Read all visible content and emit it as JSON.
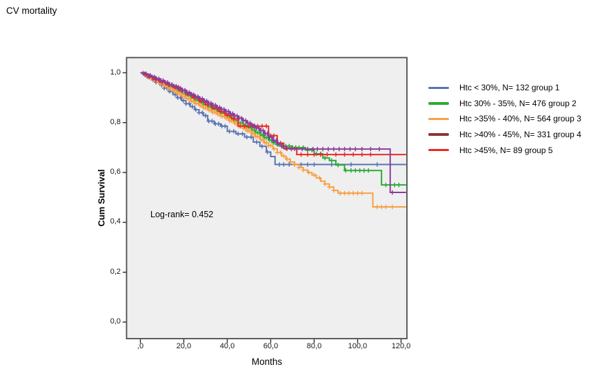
{
  "page": {
    "title": "CV mortality"
  },
  "plot": {
    "bg_color": "#efefef",
    "frame_color": "#4c4c4c",
    "tick_color": "#2b2b2b"
  },
  "x_axis": {
    "label": "Months",
    "ticks": [
      {
        "v": 0,
        "label": ",0"
      },
      {
        "v": 20,
        "label": "20,0"
      },
      {
        "v": 40,
        "label": "40,0"
      },
      {
        "v": 60,
        "label": "60,0"
      },
      {
        "v": 80,
        "label": "80,0"
      },
      {
        "v": 100,
        "label": "100,0"
      },
      {
        "v": 120,
        "label": "120,0"
      }
    ]
  },
  "y_axis": {
    "label": "Cum Survival",
    "ticks": [
      {
        "v": 0,
        "label": "0,0"
      },
      {
        "v": 0.2,
        "label": "0,2"
      },
      {
        "v": 0.4,
        "label": "0,4"
      },
      {
        "v": 0.6,
        "label": "0,6"
      },
      {
        "v": 0.8,
        "label": "0,8"
      },
      {
        "v": 1,
        "label": "1,0"
      }
    ]
  },
  "chart_data": {
    "type": "line",
    "subtype": "kaplan_meier_step",
    "title": "CV mortality",
    "xlabel": "Months",
    "ylabel": "Cum Survival",
    "xlim": [
      0,
      122.3
    ],
    "ylim": [
      0,
      1.0
    ],
    "grid": false,
    "legend_position": "right",
    "annotation": "Log-rank= 0.452",
    "series": [
      {
        "name": "Htc < 30%, N= 132 group 1",
        "group": 1,
        "n": 132,
        "z": 1,
        "color": "#5873b5",
        "legend_color": "#5873b5",
        "steps": [
          [
            0,
            1.0
          ],
          [
            1.5,
            0.992
          ],
          [
            3,
            0.984
          ],
          [
            5,
            0.972
          ],
          [
            7,
            0.962
          ],
          [
            9,
            0.95
          ],
          [
            11,
            0.938
          ],
          [
            13,
            0.925
          ],
          [
            15,
            0.912
          ],
          [
            17,
            0.9
          ],
          [
            19,
            0.888
          ],
          [
            21,
            0.876
          ],
          [
            23,
            0.864
          ],
          [
            25,
            0.852
          ],
          [
            27,
            0.84
          ],
          [
            29,
            0.828
          ],
          [
            31,
            0.806
          ],
          [
            34,
            0.795
          ],
          [
            37,
            0.786
          ],
          [
            40,
            0.765
          ],
          [
            44,
            0.755
          ],
          [
            48,
            0.742
          ],
          [
            52,
            0.722
          ],
          [
            55,
            0.705
          ],
          [
            58,
            0.682
          ],
          [
            60,
            0.664
          ],
          [
            62,
            0.632
          ],
          [
            122,
            0.632
          ]
        ],
        "censor_x": [
          2,
          3.2,
          4.5,
          5.8,
          7.2,
          8.5,
          9.8,
          11,
          12.2,
          13.5,
          14.8,
          16,
          17.2,
          18.5,
          19.8,
          21,
          22.5,
          24,
          25.5,
          27,
          28.5,
          30,
          31.5,
          33,
          34.5,
          36,
          37.5,
          39,
          41,
          43,
          45,
          47,
          49,
          51,
          53.5,
          56,
          58.5,
          64,
          66,
          68.5,
          71,
          74,
          77,
          80,
          88,
          97,
          109,
          115
        ]
      },
      {
        "name": "Htc 30% - 35%, N= 476 group 2",
        "group": 2,
        "n": 476,
        "z": 2,
        "color": "#2bab33",
        "legend_color": "#2bab33",
        "steps": [
          [
            0,
            1.0
          ],
          [
            1.5,
            0.995
          ],
          [
            3,
            0.988
          ],
          [
            5,
            0.979
          ],
          [
            7,
            0.97
          ],
          [
            9,
            0.961
          ],
          [
            11,
            0.952
          ],
          [
            13,
            0.943
          ],
          [
            15,
            0.934
          ],
          [
            17,
            0.925
          ],
          [
            19,
            0.916
          ],
          [
            21,
            0.908
          ],
          [
            23,
            0.899
          ],
          [
            25,
            0.89
          ],
          [
            27,
            0.882
          ],
          [
            29,
            0.872
          ],
          [
            31,
            0.863
          ],
          [
            33,
            0.855
          ],
          [
            35,
            0.847
          ],
          [
            37,
            0.838
          ],
          [
            39,
            0.828
          ],
          [
            41,
            0.818
          ],
          [
            43,
            0.808
          ],
          [
            45,
            0.798
          ],
          [
            47,
            0.789
          ],
          [
            49,
            0.78
          ],
          [
            51,
            0.77
          ],
          [
            53,
            0.76
          ],
          [
            55,
            0.75
          ],
          [
            57,
            0.74
          ],
          [
            59,
            0.73
          ],
          [
            61,
            0.72
          ],
          [
            63,
            0.712
          ],
          [
            65,
            0.706
          ],
          [
            70,
            0.7
          ],
          [
            76,
            0.69
          ],
          [
            80,
            0.675
          ],
          [
            84,
            0.658
          ],
          [
            87,
            0.648
          ],
          [
            90,
            0.63
          ],
          [
            94,
            0.608
          ],
          [
            111,
            0.55
          ],
          [
            122,
            0.55
          ]
        ],
        "censor_x": [
          1.2,
          2,
          2.8,
          3.6,
          4.4,
          5.2,
          6,
          6.8,
          7.6,
          8.4,
          9.2,
          10,
          10.8,
          11.6,
          12.4,
          13.2,
          14,
          14.8,
          15.6,
          16.4,
          17.2,
          18,
          18.8,
          19.6,
          20.4,
          21.2,
          22,
          22.8,
          23.6,
          24.4,
          25.2,
          26,
          26.8,
          27.6,
          28.4,
          29.2,
          30,
          30.8,
          31.6,
          32.4,
          33.2,
          34,
          34.8,
          35.6,
          36.4,
          37.2,
          38,
          38.8,
          39.6,
          40.4,
          41.2,
          42,
          42.8,
          43.6,
          44.4,
          45.2,
          46,
          46.8,
          47.6,
          48.4,
          49.2,
          50,
          50.8,
          51.6,
          52.4,
          53.2,
          54,
          54.8,
          55.6,
          56.4,
          57.2,
          58,
          58.8,
          59.6,
          60.4,
          61.2,
          62,
          63,
          64,
          65.5,
          67,
          68.5,
          70,
          71.5,
          73,
          75,
          77,
          79,
          81,
          83,
          85,
          88,
          91,
          94.5,
          97,
          99,
          101,
          103,
          105,
          113,
          115,
          117,
          119
        ]
      },
      {
        "name": "Htc >35% - 40%, N= 564 group 3",
        "group": 3,
        "n": 564,
        "z": 3,
        "color": "#f7a044",
        "legend_color": "#f7a044",
        "steps": [
          [
            0,
            1.0
          ],
          [
            1.5,
            0.994
          ],
          [
            3,
            0.986
          ],
          [
            5,
            0.976
          ],
          [
            7,
            0.966
          ],
          [
            9,
            0.956
          ],
          [
            11,
            0.946
          ],
          [
            13,
            0.936
          ],
          [
            15,
            0.926
          ],
          [
            17,
            0.916
          ],
          [
            19,
            0.906
          ],
          [
            21,
            0.896
          ],
          [
            23,
            0.886
          ],
          [
            25,
            0.877
          ],
          [
            27,
            0.868
          ],
          [
            29,
            0.859
          ],
          [
            31,
            0.85
          ],
          [
            33,
            0.842
          ],
          [
            35,
            0.834
          ],
          [
            37,
            0.826
          ],
          [
            39,
            0.817
          ],
          [
            41,
            0.807
          ],
          [
            43,
            0.797
          ],
          [
            45,
            0.787
          ],
          [
            47,
            0.777
          ],
          [
            49,
            0.767
          ],
          [
            51,
            0.755
          ],
          [
            53,
            0.744
          ],
          [
            55,
            0.732
          ],
          [
            57,
            0.72
          ],
          [
            59,
            0.708
          ],
          [
            61,
            0.695
          ],
          [
            63,
            0.68
          ],
          [
            65,
            0.666
          ],
          [
            67,
            0.654
          ],
          [
            69,
            0.642
          ],
          [
            71,
            0.631
          ],
          [
            73,
            0.62
          ],
          [
            75,
            0.61
          ],
          [
            77,
            0.6
          ],
          [
            79,
            0.59
          ],
          [
            81,
            0.578
          ],
          [
            83,
            0.565
          ],
          [
            85,
            0.554
          ],
          [
            87,
            0.542
          ],
          [
            89,
            0.528
          ],
          [
            91,
            0.517
          ],
          [
            107,
            0.462
          ],
          [
            122,
            0.462
          ]
        ],
        "censor_x": [
          1.2,
          2,
          2.8,
          3.6,
          4.4,
          5.2,
          6,
          6.8,
          7.6,
          8.4,
          9.2,
          10,
          10.8,
          11.6,
          12.4,
          13.2,
          14,
          14.8,
          15.6,
          16.4,
          17.2,
          18,
          18.8,
          19.6,
          20.4,
          21.2,
          22,
          22.8,
          23.6,
          24.4,
          25.2,
          26,
          26.8,
          27.6,
          28.4,
          29.2,
          30,
          30.8,
          31.6,
          32.4,
          33.2,
          34,
          34.8,
          35.6,
          36.4,
          37.2,
          38,
          38.8,
          39.6,
          40.4,
          41.2,
          42,
          42.8,
          43.6,
          44.4,
          45.2,
          46,
          46.8,
          47.6,
          48.4,
          49.2,
          50,
          50.8,
          51.6,
          52.4,
          53.2,
          54,
          54.8,
          55.6,
          56.4,
          57.2,
          58,
          59,
          60,
          61.5,
          63,
          64.5,
          66,
          67.5,
          69,
          71,
          73,
          75,
          77.5,
          80,
          82.5,
          85,
          87,
          89,
          92,
          94,
          96,
          98,
          100,
          102,
          109,
          111,
          113,
          116
        ]
      },
      {
        "name": "Htc >40% - 45%, N= 331 group 4",
        "group": 4,
        "n": 331,
        "z": 5,
        "color": "#8a3d9e",
        "legend_color": "#8c3636",
        "steps": [
          [
            0,
            1.0
          ],
          [
            1.5,
            0.996
          ],
          [
            3,
            0.99
          ],
          [
            5,
            0.983
          ],
          [
            7,
            0.976
          ],
          [
            9,
            0.969
          ],
          [
            11,
            0.961
          ],
          [
            13,
            0.953
          ],
          [
            15,
            0.946
          ],
          [
            17,
            0.938
          ],
          [
            19,
            0.93
          ],
          [
            21,
            0.921
          ],
          [
            23,
            0.912
          ],
          [
            25,
            0.904
          ],
          [
            27,
            0.896
          ],
          [
            29,
            0.887
          ],
          [
            31,
            0.878
          ],
          [
            33,
            0.87
          ],
          [
            35,
            0.861
          ],
          [
            37,
            0.853
          ],
          [
            39,
            0.845
          ],
          [
            41,
            0.836
          ],
          [
            43,
            0.827
          ],
          [
            45,
            0.818
          ],
          [
            47,
            0.808
          ],
          [
            49,
            0.798
          ],
          [
            51,
            0.788
          ],
          [
            53,
            0.778
          ],
          [
            55,
            0.768
          ],
          [
            57,
            0.756
          ],
          [
            59,
            0.742
          ],
          [
            61,
            0.728
          ],
          [
            63,
            0.715
          ],
          [
            65,
            0.705
          ],
          [
            67,
            0.698
          ],
          [
            69,
            0.694
          ],
          [
            115,
            0.52
          ],
          [
            122,
            0.52
          ]
        ],
        "censor_x": [
          1.5,
          2.5,
          3.5,
          4.5,
          5.5,
          6.5,
          7.5,
          8.5,
          9.5,
          10.5,
          11.5,
          12.5,
          13.5,
          14.5,
          15.5,
          16.5,
          17.5,
          18.5,
          19.5,
          20.5,
          21.5,
          22.5,
          23.5,
          24.5,
          25.5,
          26.5,
          27.5,
          28.5,
          29.5,
          30.5,
          31.5,
          32.5,
          33.5,
          34.5,
          35.5,
          36.5,
          37.5,
          38.5,
          39.5,
          40.5,
          41.5,
          42.5,
          43.5,
          44.5,
          45.5,
          46.5,
          47.5,
          48.5,
          49.5,
          50.5,
          51.5,
          52.5,
          53.5,
          54.5,
          55.5,
          56.5,
          57.5,
          58.5,
          59.5,
          60.5,
          61.5,
          62.5,
          63.5,
          65,
          67,
          69.5,
          72,
          74.5,
          77,
          79.5,
          81.5,
          84,
          86.5,
          89,
          91.5,
          94,
          96.5,
          99,
          102,
          106,
          110,
          116
        ]
      },
      {
        "name": "Htc >45%, N= 89 group 5",
        "group": 5,
        "n": 89,
        "z": 4,
        "color": "#ea2a26",
        "legend_color": "#ea2a26",
        "steps": [
          [
            0,
            1.0
          ],
          [
            2,
            0.992
          ],
          [
            4,
            0.982
          ],
          [
            6,
            0.972
          ],
          [
            9,
            0.962
          ],
          [
            12,
            0.952
          ],
          [
            15,
            0.942
          ],
          [
            18,
            0.928
          ],
          [
            21,
            0.914
          ],
          [
            24,
            0.9
          ],
          [
            27,
            0.886
          ],
          [
            30,
            0.871
          ],
          [
            33,
            0.858
          ],
          [
            36,
            0.844
          ],
          [
            39,
            0.83
          ],
          [
            42,
            0.815
          ],
          [
            45,
            0.786
          ],
          [
            59,
            0.748
          ],
          [
            63,
            0.718
          ],
          [
            66,
            0.695
          ],
          [
            72,
            0.672
          ],
          [
            122,
            0.672
          ]
        ],
        "censor_x": [
          2.5,
          4,
          5.5,
          7,
          8.5,
          10,
          11.5,
          13,
          14.5,
          16,
          17.5,
          19,
          20.5,
          22,
          23.5,
          25,
          26.5,
          28,
          29.5,
          31,
          32.5,
          34,
          35.5,
          37,
          38.5,
          40,
          41.5,
          43,
          46,
          48,
          50,
          52,
          54,
          56,
          58,
          60,
          61.5,
          64.5,
          67.5,
          71,
          74,
          77,
          80,
          83,
          86,
          90,
          94,
          98,
          102,
          106
        ]
      }
    ]
  }
}
